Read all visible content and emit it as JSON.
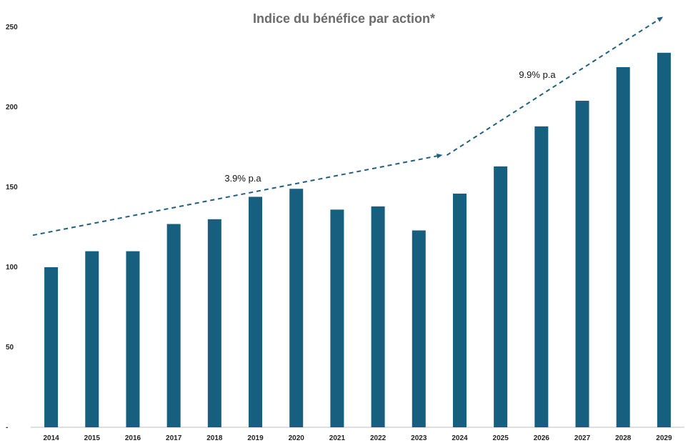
{
  "chart_data": {
    "type": "bar",
    "title": "Indice du bénéfice par action*",
    "xlabel": "",
    "ylabel": "",
    "ylim": [
      0,
      250
    ],
    "yticks": [
      "-",
      "50",
      "100",
      "150",
      "200",
      "250"
    ],
    "grid": false,
    "categories": [
      "2014",
      "2015",
      "2016",
      "2017",
      "2018",
      "2019",
      "2020",
      "2021",
      "2022",
      "2023",
      "2024",
      "2025",
      "2026",
      "2027",
      "2028",
      "2029"
    ],
    "series": [
      {
        "values": [
          100,
          110,
          110,
          127,
          130,
          144,
          149,
          136,
          138,
          123,
          146,
          163,
          188,
          204,
          225,
          234
        ],
        "color": "#175f7f"
      }
    ],
    "trend_lines": [
      {
        "label": "3.9% p.a",
        "x_start": "2014",
        "y_start": 120,
        "x_end": "2024",
        "y_end": 170
      },
      {
        "label": "9.9% p.a",
        "x_start": "2024",
        "y_start": 170,
        "x_end": "2029",
        "y_end": 256
      }
    ],
    "trend_color": "#1f5f80"
  }
}
